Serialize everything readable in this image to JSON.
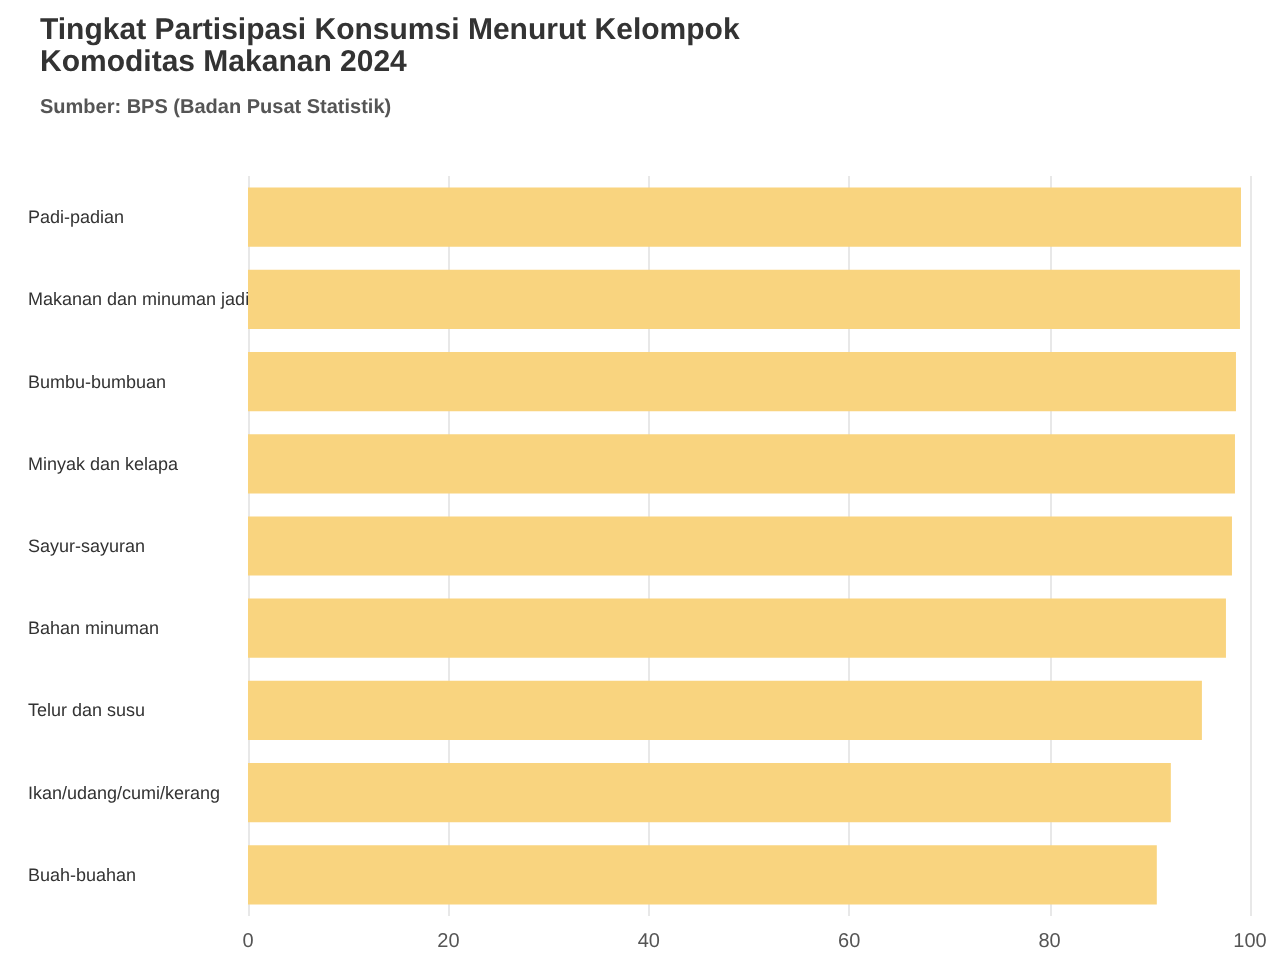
{
  "chart_data": {
    "type": "bar",
    "orientation": "horizontal",
    "title": "Tingkat Partisipasi Konsumsi Menurut Kelompok Komoditas Makanan 2024",
    "subtitle": "Sumber: BPS (Badan Pusat Statistik)",
    "categories": [
      "Padi-padian",
      "Makanan dan minuman jadi",
      "Bumbu-bumbuan",
      "Minyak dan kelapa",
      "Sayur-sayuran",
      "Bahan minuman",
      "Telur dan susu",
      "Ikan/udang/cumi/kerang",
      "Buah-buahan"
    ],
    "values": [
      99.1,
      99.0,
      98.6,
      98.5,
      98.2,
      97.6,
      95.2,
      92.1,
      90.7
    ],
    "color": "#f9d47f",
    "xlim": [
      0,
      100
    ],
    "xticks": [
      0,
      20,
      40,
      60,
      80,
      100
    ],
    "grid": "x"
  }
}
